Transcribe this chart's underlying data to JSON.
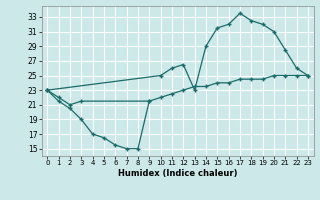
{
  "title": "",
  "xlabel": "Humidex (Indice chaleur)",
  "bg_color": "#cce8e8",
  "grid_color": "#ffffff",
  "line_color": "#1a6b6b",
  "xlim": [
    -0.5,
    23.5
  ],
  "ylim": [
    14.0,
    34.5
  ],
  "yticks": [
    15,
    17,
    19,
    21,
    23,
    25,
    27,
    29,
    31,
    33
  ],
  "xticks": [
    0,
    1,
    2,
    3,
    4,
    5,
    6,
    7,
    8,
    9,
    10,
    11,
    12,
    13,
    14,
    15,
    16,
    17,
    18,
    19,
    20,
    21,
    22,
    23
  ],
  "series": [
    {
      "x": [
        0,
        1,
        2,
        3,
        4,
        5,
        6,
        7,
        8,
        9
      ],
      "y": [
        23.0,
        21.5,
        20.5,
        19.0,
        17.0,
        16.5,
        15.5,
        15.0,
        15.0,
        21.5
      ]
    },
    {
      "x": [
        0,
        10,
        11,
        12,
        13,
        14,
        15,
        16,
        17,
        18,
        19,
        20,
        21,
        22,
        23
      ],
      "y": [
        23.0,
        25.0,
        26.0,
        26.5,
        23.0,
        29.0,
        31.5,
        32.0,
        33.5,
        32.5,
        32.0,
        31.0,
        28.5,
        26.0,
        25.0
      ]
    },
    {
      "x": [
        0,
        1,
        2,
        3,
        9,
        10,
        11,
        12,
        13,
        14,
        15,
        16,
        17,
        18,
        19,
        20,
        21,
        22,
        23
      ],
      "y": [
        23.0,
        22.0,
        21.0,
        21.5,
        21.5,
        22.0,
        22.5,
        23.0,
        23.5,
        23.5,
        24.0,
        24.0,
        24.5,
        24.5,
        24.5,
        25.0,
        25.0,
        25.0,
        25.0
      ]
    }
  ]
}
